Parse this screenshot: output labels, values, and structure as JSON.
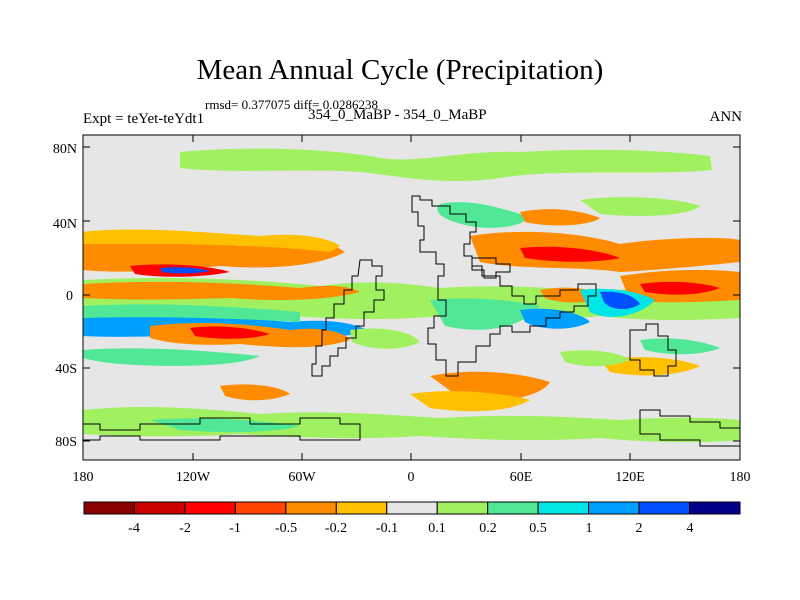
{
  "title": "Mean Annual Cycle (Precipitation)",
  "stats_line": "rmsd= 0.377075 diff= 0.0286238",
  "experiment_label": "Expt = teYet-teYdt1",
  "case_label": "354_0_MaBP - 354_0_MaBP",
  "season_label": "ANN",
  "y_axis_ticks": [
    "80N",
    "40N",
    "0",
    "40S",
    "80S"
  ],
  "x_axis_ticks": [
    "180",
    "120W",
    "60W",
    "0",
    "60E",
    "120E",
    "180"
  ],
  "colorbar": {
    "colors": [
      "#8b0000",
      "#cc0000",
      "#ff0000",
      "#ff4500",
      "#ff8c00",
      "#ffc000",
      "#e6e6e6",
      "#a0f060",
      "#50e896",
      "#00e6e6",
      "#00a0ff",
      "#0050ff",
      "#00008b"
    ],
    "labels": [
      "-4",
      "-2",
      "-1",
      "-0.5",
      "-0.2",
      "-0.1",
      "0.1",
      "0.2",
      "0.5",
      "1",
      "2",
      "4"
    ]
  },
  "field_colors": {
    "background": "#e6e6e6",
    "light_green": "#a0f060",
    "teal": "#50e896",
    "cyan": "#00e6e6",
    "sky": "#00a0ff",
    "blue": "#0050ff",
    "yellow": "#ffc000",
    "orange": "#ff8c00",
    "orange_red": "#ff4500",
    "red": "#ff0000"
  }
}
